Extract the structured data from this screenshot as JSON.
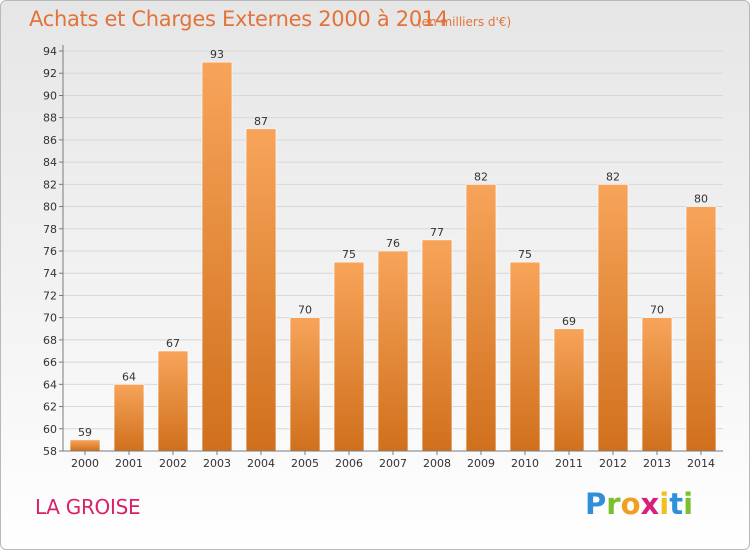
{
  "header": {
    "title": "Achats et Charges Externes 2000 à 2014",
    "subtitle": "(en milliers d'€)"
  },
  "footer": {
    "commune": "LA GROISE",
    "logo": {
      "letters": [
        "P",
        "r",
        "o",
        "x",
        "i",
        "t",
        "i"
      ],
      "colors": [
        "#2f8fd8",
        "#7cbf2d",
        "#f0a020",
        "#d8207a",
        "#f0c020",
        "#2f8fd8",
        "#7cbf2d"
      ]
    }
  },
  "colors": {
    "bar_light": "#f7a45a",
    "bar_dark": "#d0701c",
    "axis": "#7a7a7a",
    "grid": "#d8d8d8",
    "text": "#333333"
  },
  "chart_data": {
    "type": "bar",
    "title": "Achats et Charges Externes 2000 à 2014",
    "subtitle": "(en milliers d'€)",
    "categories": [
      "2000",
      "2001",
      "2002",
      "2003",
      "2004",
      "2005",
      "2006",
      "2007",
      "2008",
      "2009",
      "2010",
      "2011",
      "2012",
      "2013",
      "2014"
    ],
    "values": [
      59,
      64,
      67,
      93,
      87,
      70,
      75,
      76,
      77,
      82,
      75,
      69,
      82,
      70,
      80
    ],
    "ylim": [
      58,
      94
    ],
    "yticks": [
      58,
      60,
      62,
      64,
      66,
      68,
      70,
      72,
      74,
      76,
      78,
      80,
      82,
      84,
      86,
      88,
      90,
      92,
      94
    ],
    "grid": true,
    "data_labels": true
  }
}
